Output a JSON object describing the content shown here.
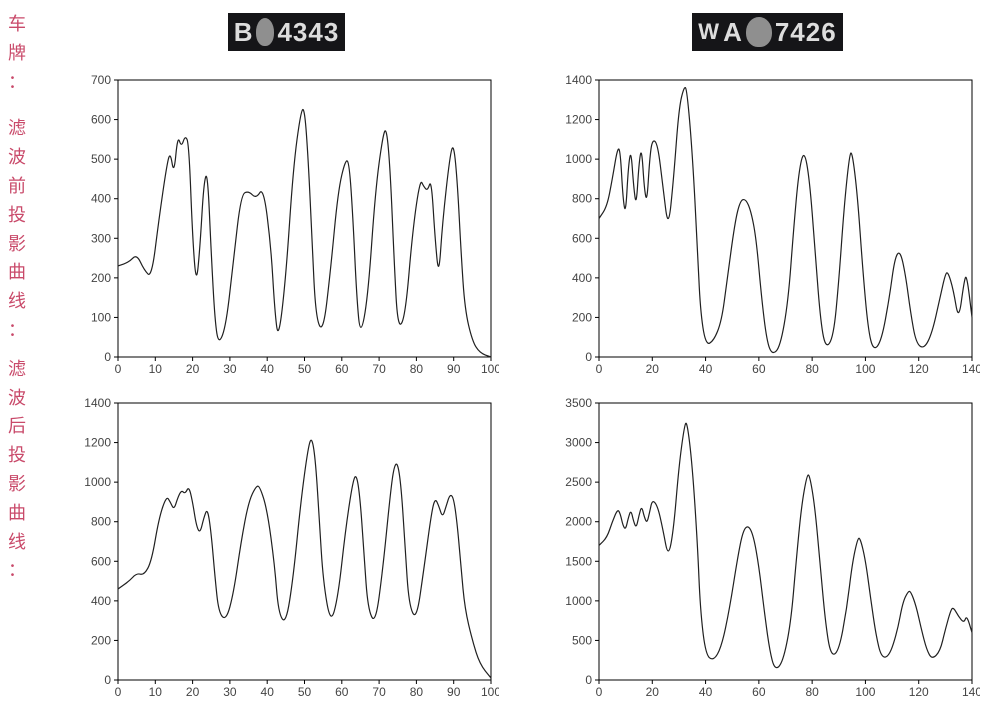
{
  "labels": {
    "plate": "车牌：",
    "before": "滤波前投影曲线：",
    "after": "滤波后投影曲线："
  },
  "label_color": "#c94a6a",
  "label_fontsize": 18,
  "plates": {
    "left": {
      "prefix": "B",
      "suffix": "4343",
      "has_blob": true,
      "plate_name": "plate-left"
    },
    "right": {
      "prefix": "A",
      "suffix": "7426",
      "has_blob": true,
      "plate_name": "plate-right",
      "leading": "W"
    }
  },
  "charts": {
    "top_left": {
      "type": "line",
      "xlim": [
        0,
        100
      ],
      "xtick_step": 10,
      "ylim": [
        0,
        700
      ],
      "ytick_step": 100,
      "background_color": "#ffffff",
      "axis_color": "#000000",
      "line_color": "#202020",
      "tick_fontsize": 12,
      "data": [
        [
          0,
          230
        ],
        [
          3,
          240
        ],
        [
          5,
          260
        ],
        [
          7,
          220
        ],
        [
          9,
          200
        ],
        [
          11,
          350
        ],
        [
          13,
          480
        ],
        [
          14,
          520
        ],
        [
          15,
          460
        ],
        [
          16,
          560
        ],
        [
          17,
          530
        ],
        [
          18,
          560
        ],
        [
          19,
          540
        ],
        [
          20,
          300
        ],
        [
          21,
          180
        ],
        [
          22,
          280
        ],
        [
          23,
          440
        ],
        [
          24,
          470
        ],
        [
          25,
          260
        ],
        [
          26,
          90
        ],
        [
          27,
          30
        ],
        [
          29,
          80
        ],
        [
          31,
          250
        ],
        [
          33,
          410
        ],
        [
          35,
          420
        ],
        [
          37,
          400
        ],
        [
          39,
          430
        ],
        [
          41,
          280
        ],
        [
          42,
          120
        ],
        [
          43,
          40
        ],
        [
          45,
          200
        ],
        [
          47,
          480
        ],
        [
          49,
          620
        ],
        [
          50,
          630
        ],
        [
          51,
          500
        ],
        [
          52,
          300
        ],
        [
          53,
          100
        ],
        [
          55,
          60
        ],
        [
          57,
          220
        ],
        [
          59,
          420
        ],
        [
          61,
          500
        ],
        [
          62,
          490
        ],
        [
          63,
          350
        ],
        [
          64,
          150
        ],
        [
          65,
          50
        ],
        [
          67,
          150
        ],
        [
          69,
          420
        ],
        [
          71,
          560
        ],
        [
          72,
          580
        ],
        [
          73,
          470
        ],
        [
          74,
          250
        ],
        [
          75,
          70
        ],
        [
          77,
          100
        ],
        [
          79,
          320
        ],
        [
          81,
          450
        ],
        [
          82,
          430
        ],
        [
          83,
          420
        ],
        [
          84,
          450
        ],
        [
          85,
          300
        ],
        [
          86,
          200
        ],
        [
          87,
          340
        ],
        [
          89,
          510
        ],
        [
          90,
          540
        ],
        [
          91,
          440
        ],
        [
          92,
          260
        ],
        [
          93,
          120
        ],
        [
          95,
          40
        ],
        [
          97,
          10
        ],
        [
          100,
          0
        ]
      ]
    },
    "top_right": {
      "type": "line",
      "xlim": [
        0,
        140
      ],
      "xtick_step": 20,
      "ylim": [
        0,
        1400
      ],
      "ytick_step": 200,
      "background_color": "#ffffff",
      "axis_color": "#000000",
      "line_color": "#202020",
      "tick_fontsize": 12,
      "data": [
        [
          0,
          700
        ],
        [
          3,
          760
        ],
        [
          5,
          900
        ],
        [
          7,
          1060
        ],
        [
          8,
          1040
        ],
        [
          9,
          800
        ],
        [
          10,
          720
        ],
        [
          11,
          960
        ],
        [
          12,
          1050
        ],
        [
          13,
          860
        ],
        [
          14,
          760
        ],
        [
          15,
          980
        ],
        [
          16,
          1060
        ],
        [
          17,
          850
        ],
        [
          18,
          780
        ],
        [
          19,
          1000
        ],
        [
          20,
          1100
        ],
        [
          22,
          1080
        ],
        [
          24,
          860
        ],
        [
          26,
          640
        ],
        [
          28,
          900
        ],
        [
          30,
          1260
        ],
        [
          32,
          1370
        ],
        [
          33,
          1350
        ],
        [
          35,
          1040
        ],
        [
          37,
          540
        ],
        [
          38,
          240
        ],
        [
          40,
          60
        ],
        [
          43,
          80
        ],
        [
          46,
          180
        ],
        [
          48,
          380
        ],
        [
          51,
          680
        ],
        [
          53,
          790
        ],
        [
          55,
          800
        ],
        [
          57,
          740
        ],
        [
          59,
          600
        ],
        [
          61,
          300
        ],
        [
          63,
          80
        ],
        [
          65,
          10
        ],
        [
          68,
          50
        ],
        [
          71,
          280
        ],
        [
          73,
          640
        ],
        [
          75,
          940
        ],
        [
          77,
          1050
        ],
        [
          79,
          900
        ],
        [
          81,
          560
        ],
        [
          83,
          200
        ],
        [
          85,
          40
        ],
        [
          88,
          100
        ],
        [
          90,
          380
        ],
        [
          92,
          760
        ],
        [
          94,
          1020
        ],
        [
          95,
          1040
        ],
        [
          97,
          820
        ],
        [
          99,
          440
        ],
        [
          101,
          140
        ],
        [
          103,
          30
        ],
        [
          106,
          80
        ],
        [
          109,
          300
        ],
        [
          111,
          500
        ],
        [
          113,
          540
        ],
        [
          115,
          420
        ],
        [
          117,
          220
        ],
        [
          119,
          70
        ],
        [
          122,
          40
        ],
        [
          125,
          120
        ],
        [
          128,
          300
        ],
        [
          130,
          420
        ],
        [
          131,
          430
        ],
        [
          133,
          340
        ],
        [
          135,
          180
        ],
        [
          137,
          380
        ],
        [
          138,
          420
        ],
        [
          140,
          200
        ]
      ]
    },
    "bottom_left": {
      "type": "line",
      "xlim": [
        0,
        100
      ],
      "xtick_step": 10,
      "ylim": [
        0,
        1400
      ],
      "ytick_step": 200,
      "background_color": "#ffffff",
      "axis_color": "#000000",
      "line_color": "#202020",
      "tick_fontsize": 12,
      "data": [
        [
          0,
          460
        ],
        [
          3,
          500
        ],
        [
          5,
          540
        ],
        [
          7,
          530
        ],
        [
          9,
          600
        ],
        [
          11,
          820
        ],
        [
          13,
          930
        ],
        [
          14,
          900
        ],
        [
          15,
          860
        ],
        [
          16,
          920
        ],
        [
          17,
          960
        ],
        [
          18,
          940
        ],
        [
          19,
          980
        ],
        [
          20,
          900
        ],
        [
          21,
          780
        ],
        [
          22,
          740
        ],
        [
          23,
          820
        ],
        [
          24,
          870
        ],
        [
          25,
          740
        ],
        [
          26,
          520
        ],
        [
          27,
          340
        ],
        [
          29,
          300
        ],
        [
          31,
          440
        ],
        [
          33,
          700
        ],
        [
          35,
          900
        ],
        [
          37,
          980
        ],
        [
          38,
          980
        ],
        [
          40,
          860
        ],
        [
          42,
          580
        ],
        [
          43,
          340
        ],
        [
          45,
          280
        ],
        [
          47,
          520
        ],
        [
          49,
          900
        ],
        [
          51,
          1180
        ],
        [
          52,
          1230
        ],
        [
          53,
          1100
        ],
        [
          54,
          800
        ],
        [
          55,
          500
        ],
        [
          57,
          280
        ],
        [
          59,
          420
        ],
        [
          61,
          760
        ],
        [
          63,
          1010
        ],
        [
          64,
          1040
        ],
        [
          65,
          900
        ],
        [
          66,
          620
        ],
        [
          67,
          360
        ],
        [
          69,
          280
        ],
        [
          71,
          560
        ],
        [
          73,
          940
        ],
        [
          74,
          1080
        ],
        [
          75,
          1100
        ],
        [
          76,
          960
        ],
        [
          77,
          660
        ],
        [
          78,
          380
        ],
        [
          80,
          300
        ],
        [
          82,
          560
        ],
        [
          84,
          840
        ],
        [
          85,
          920
        ],
        [
          86,
          880
        ],
        [
          87,
          820
        ],
        [
          88,
          880
        ],
        [
          89,
          940
        ],
        [
          90,
          920
        ],
        [
          91,
          780
        ],
        [
          92,
          560
        ],
        [
          93,
          360
        ],
        [
          95,
          200
        ],
        [
          97,
          80
        ],
        [
          100,
          10
        ]
      ]
    },
    "bottom_right": {
      "type": "line",
      "xlim": [
        0,
        140
      ],
      "xtick_step": 20,
      "ylim": [
        0,
        3500
      ],
      "ytick_step": 500,
      "background_color": "#ffffff",
      "axis_color": "#000000",
      "line_color": "#202020",
      "tick_fontsize": 12,
      "data": [
        [
          0,
          1700
        ],
        [
          3,
          1800
        ],
        [
          5,
          2000
        ],
        [
          7,
          2160
        ],
        [
          8,
          2100
        ],
        [
          9,
          1950
        ],
        [
          10,
          1900
        ],
        [
          11,
          2050
        ],
        [
          12,
          2150
        ],
        [
          13,
          2000
        ],
        [
          14,
          1920
        ],
        [
          15,
          2080
        ],
        [
          16,
          2200
        ],
        [
          17,
          2060
        ],
        [
          18,
          1980
        ],
        [
          19,
          2120
        ],
        [
          20,
          2280
        ],
        [
          22,
          2200
        ],
        [
          24,
          1900
        ],
        [
          26,
          1540
        ],
        [
          28,
          1900
        ],
        [
          30,
          2700
        ],
        [
          32,
          3200
        ],
        [
          33,
          3280
        ],
        [
          35,
          2720
        ],
        [
          37,
          1700
        ],
        [
          38,
          900
        ],
        [
          40,
          320
        ],
        [
          43,
          240
        ],
        [
          46,
          420
        ],
        [
          49,
          900
        ],
        [
          52,
          1540
        ],
        [
          54,
          1880
        ],
        [
          56,
          1960
        ],
        [
          58,
          1820
        ],
        [
          60,
          1440
        ],
        [
          62,
          880
        ],
        [
          64,
          380
        ],
        [
          66,
          120
        ],
        [
          69,
          220
        ],
        [
          72,
          720
        ],
        [
          74,
          1500
        ],
        [
          76,
          2200
        ],
        [
          78,
          2580
        ],
        [
          79,
          2600
        ],
        [
          81,
          2200
        ],
        [
          83,
          1460
        ],
        [
          85,
          720
        ],
        [
          87,
          300
        ],
        [
          90,
          360
        ],
        [
          93,
          900
        ],
        [
          95,
          1460
        ],
        [
          97,
          1780
        ],
        [
          98,
          1800
        ],
        [
          100,
          1520
        ],
        [
          102,
          1020
        ],
        [
          104,
          560
        ],
        [
          106,
          280
        ],
        [
          109,
          300
        ],
        [
          112,
          620
        ],
        [
          114,
          980
        ],
        [
          116,
          1120
        ],
        [
          117,
          1120
        ],
        [
          119,
          940
        ],
        [
          121,
          640
        ],
        [
          123,
          380
        ],
        [
          125,
          260
        ],
        [
          128,
          360
        ],
        [
          130,
          640
        ],
        [
          132,
          880
        ],
        [
          133,
          920
        ],
        [
          135,
          800
        ],
        [
          137,
          720
        ],
        [
          138,
          820
        ],
        [
          140,
          600
        ]
      ]
    }
  }
}
